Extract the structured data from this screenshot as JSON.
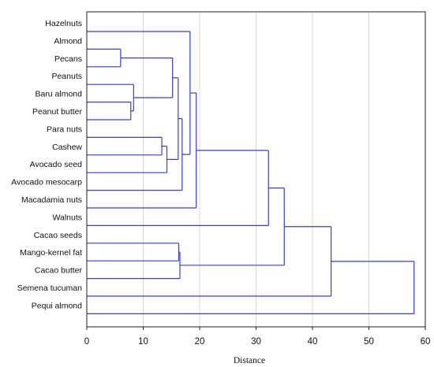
{
  "chart_data": {
    "type": "dendrogram",
    "title": "",
    "xlabel": "Distance",
    "ylabel": "",
    "xlim": [
      0,
      60
    ],
    "x_ticks": [
      "0",
      "10",
      "20",
      "30",
      "40",
      "50",
      "60"
    ],
    "x_tick_values": [
      0,
      10,
      20,
      30,
      40,
      50,
      60
    ],
    "grid": "vertical",
    "leaves": [
      "Hazelnuts",
      "Almond",
      "Pecans",
      "Peanuts",
      "Baru almond",
      "Peanut butter",
      "Para nuts",
      "Cashew",
      "Avocado seed",
      "Avocado mesocarp",
      "Macadamia nuts",
      "Walnuts",
      "Cacao seeds",
      "Mango-kernel fat",
      "Cacao butter",
      "Semena tucuman",
      "Pequi almond"
    ],
    "merges": [
      {
        "id": "c1",
        "a": "Almond",
        "b": "Pecans",
        "distance": 6.0
      },
      {
        "id": "c2",
        "a": "Baru almond",
        "b": "Peanut butter",
        "distance": 7.8
      },
      {
        "id": "c3",
        "a": "Peanuts",
        "b": "c2",
        "distance": 8.3
      },
      {
        "id": "c4",
        "a": "Para nuts",
        "b": "Cashew",
        "distance": 13.3
      },
      {
        "id": "c5",
        "a": "c4",
        "b": "Avocado seed",
        "distance": 14.2
      },
      {
        "id": "c6",
        "a": "c1",
        "b": "c3",
        "distance": 15.2
      },
      {
        "id": "c7",
        "a": "c6",
        "b": "c5",
        "distance": 16.2
      },
      {
        "id": "c8",
        "a": "Cacao seeds",
        "b": "Mango-kernel fat",
        "distance": 16.3
      },
      {
        "id": "c9",
        "a": "c8",
        "b": "Cacao butter",
        "distance": 16.5
      },
      {
        "id": "c10",
        "a": "c7",
        "b": "Avocado mesocarp",
        "distance": 16.9
      },
      {
        "id": "c11",
        "a": "Hazelnuts",
        "b": "c10",
        "distance": 18.3
      },
      {
        "id": "c12",
        "a": "c11",
        "b": "Macadamia nuts",
        "distance": 19.4
      },
      {
        "id": "c13",
        "a": "c12",
        "b": "Walnuts",
        "distance": 32.2
      },
      {
        "id": "c14",
        "a": "c13",
        "b": "c9",
        "distance": 35.0
      },
      {
        "id": "c15",
        "a": "c14",
        "b": "Semena tucuman",
        "distance": 43.3
      },
      {
        "id": "c16",
        "a": "c15",
        "b": "Pequi almond",
        "distance": 58.0
      }
    ],
    "colors": {
      "branch": "#3d3dc8",
      "grid": "#d8d8d8",
      "frame": "#222222",
      "text": "#111111"
    }
  }
}
